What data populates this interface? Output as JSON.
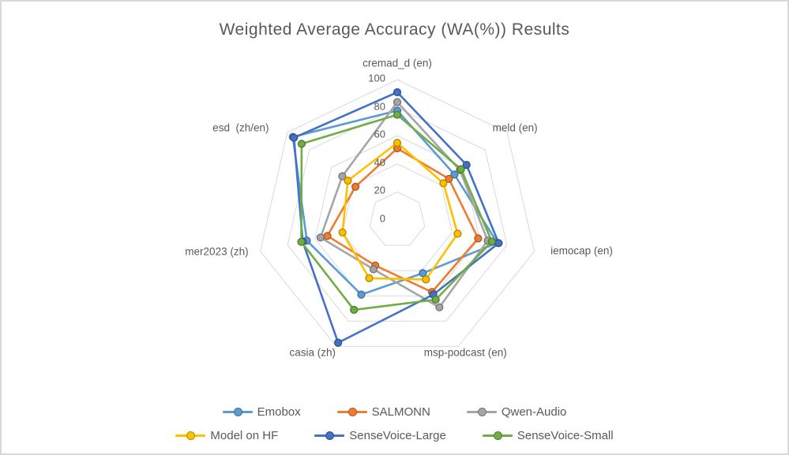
{
  "chart": {
    "title": "Weighted Average Accuracy (WA(%)) Results"
  },
  "chart_data": {
    "type": "radar",
    "title": "Weighted Average Accuracy (WA(%)) Results",
    "categories": [
      "cremad_d (en)",
      "meld (en)",
      "iemocap (en)",
      "msp-podcast (en)",
      "casia (zh)",
      "mer2023 (zh)",
      "esd  (zh/en)"
    ],
    "radial_axis": {
      "min": 0,
      "max": 100,
      "tick_step": 20,
      "tick_labels": [
        "0",
        "20",
        "40",
        "60",
        "80",
        "100"
      ]
    },
    "grid": true,
    "legend_position": "bottom",
    "series": [
      {
        "name": "Emobox",
        "color": "#5B9BD5",
        "values": [
          78,
          52,
          73,
          42,
          59,
          66,
          95
        ]
      },
      {
        "name": "SALMONN",
        "color": "#ED7D31",
        "values": [
          51,
          47,
          59,
          57,
          36,
          51,
          38
        ]
      },
      {
        "name": "Qwen-Audio",
        "color": "#A5A5A5",
        "values": [
          84,
          57,
          66,
          69,
          39,
          56,
          50
        ]
      },
      {
        "name": "Model on HF",
        "color": "#FFC000",
        "values": [
          55,
          42,
          44,
          47,
          46,
          40,
          45
        ]
      },
      {
        "name": "SenseVoice-Large",
        "color": "#4472C4",
        "values": [
          91,
          63,
          74,
          59,
          97,
          69,
          94
        ]
      },
      {
        "name": "SenseVoice-Small",
        "color": "#70AD47",
        "values": [
          75,
          58,
          69,
          63,
          71,
          70,
          87
        ]
      }
    ],
    "legend_rows": [
      [
        "Emobox",
        "SALMONN",
        "Qwen-Audio"
      ],
      [
        "Model on HF",
        "SenseVoice-Large",
        "SenseVoice-Small"
      ]
    ]
  },
  "colors": {
    "title_text": "#595959",
    "axis_text": "#595959",
    "grid": "#D9D9D9",
    "background": "#FFFFFF",
    "frame_border": "#D9D9D9"
  }
}
